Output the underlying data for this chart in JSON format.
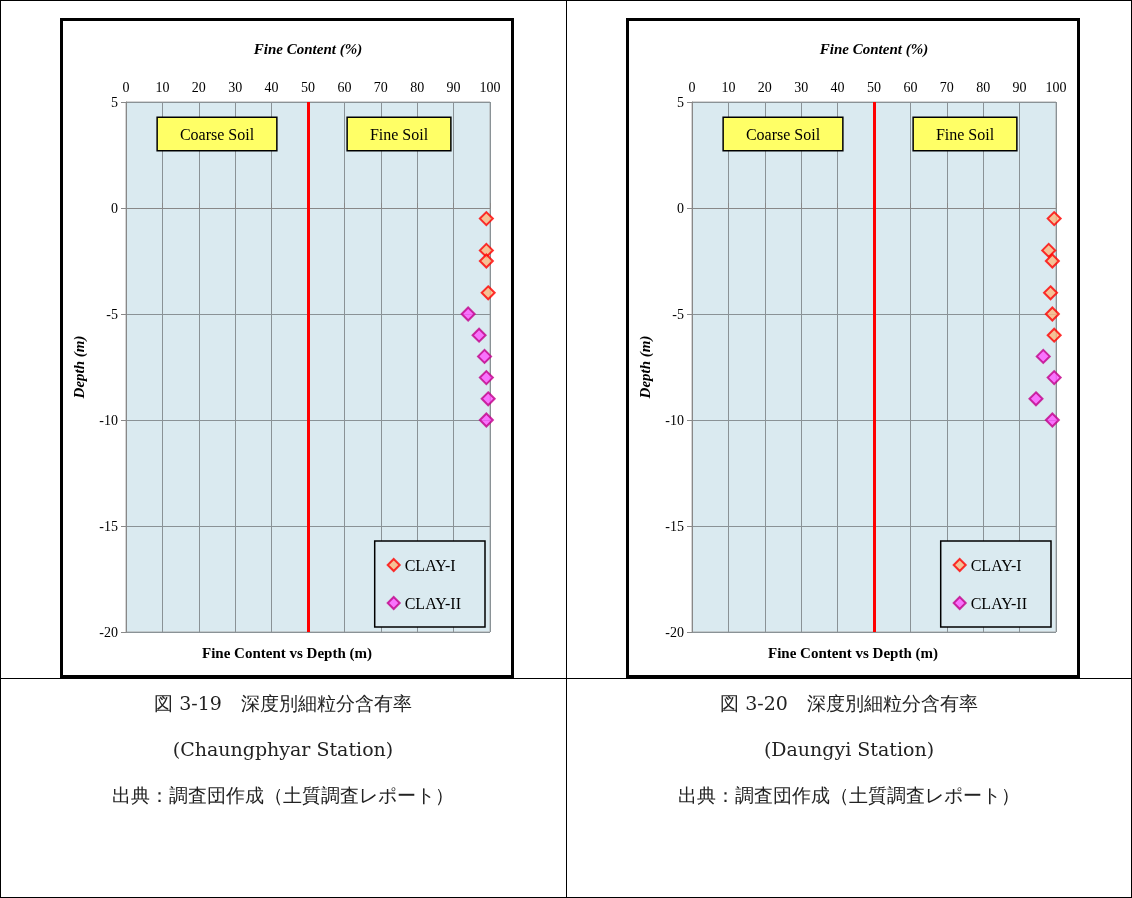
{
  "chart_data": [
    {
      "type": "scatter",
      "title": "Fine Content vs Depth (m)",
      "xlabel": "Fine Content (%)",
      "ylabel": "Depth (m)",
      "xlim": [
        0,
        100
      ],
      "xticks": [
        0,
        10,
        20,
        30,
        40,
        50,
        60,
        70,
        80,
        90,
        100
      ],
      "ylim": [
        -20,
        5
      ],
      "yticks": [
        -20,
        -15,
        -10,
        -5,
        0,
        5
      ],
      "grid": true,
      "legend": "bottom right",
      "marker": "diamond",
      "series": [
        {
          "name": "CLAY-I",
          "color": "#fbb77f",
          "x": [
            99,
            99,
            99,
            99.5
          ],
          "values": [
            -0.5,
            -2,
            -2.5,
            -4
          ]
        },
        {
          "name": "CLAY-II",
          "color": "#ff55ff",
          "x": [
            94,
            97,
            98.5,
            99,
            99.5,
            99
          ],
          "values": [
            -5,
            -6,
            -7,
            -8,
            -9,
            -10
          ]
        }
      ],
      "ref_lines": [
        {
          "axis": "x",
          "value": 50,
          "color": "#ff0000"
        }
      ],
      "annotations": [
        "Coarse Soil",
        "Fine Soil",
        "図 3-19　深度別細粒分含有率",
        "(Chaungphyar Station)",
        "出典：調査団作成（土質調査レポート）"
      ]
    },
    {
      "type": "scatter",
      "title": "Fine Content vs Depth (m)",
      "xlabel": "Fine Content (%)",
      "ylabel": "Depth (m)",
      "xlim": [
        0,
        100
      ],
      "xticks": [
        0,
        10,
        20,
        30,
        40,
        50,
        60,
        70,
        80,
        90,
        100
      ],
      "ylim": [
        -20,
        5
      ],
      "yticks": [
        -20,
        -15,
        -10,
        -5,
        0,
        5
      ],
      "grid": true,
      "legend": "bottom right",
      "marker": "diamond",
      "series": [
        {
          "name": "CLAY-I",
          "color": "#fbb77f",
          "x": [
            99.5,
            98,
            99,
            98.5,
            99,
            99.5
          ],
          "values": [
            -0.5,
            -2,
            -2.5,
            -4,
            -5,
            -6
          ]
        },
        {
          "name": "CLAY-II",
          "color": "#ff55ff",
          "x": [
            96.5,
            99.5,
            94.5,
            99
          ],
          "values": [
            -7,
            -8,
            -9,
            -10
          ]
        }
      ],
      "ref_lines": [
        {
          "axis": "x",
          "value": 50,
          "color": "#ff0000"
        }
      ],
      "annotations": [
        "Coarse Soil",
        "Fine Soil",
        "図 3-20　深度別細粒分含有率",
        "(Daungyi Station)",
        "出典：調査団作成（土質調査レポート）"
      ]
    }
  ]
}
